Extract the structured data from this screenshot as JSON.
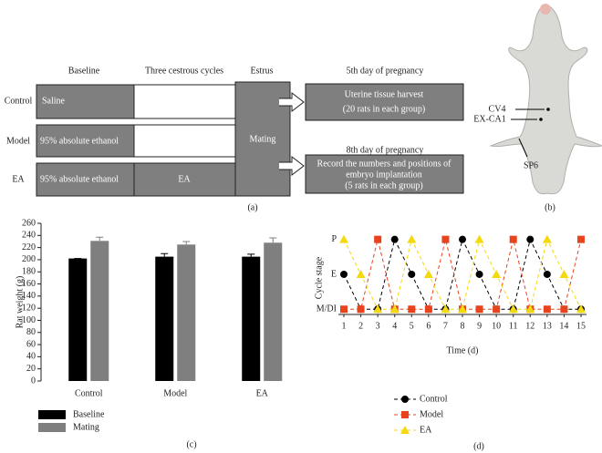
{
  "diagram": {
    "column_headers": [
      "Baseline",
      "Three cestrous cycles",
      "Estrus",
      "5th day of pregnancy",
      "8th day of pregnancy"
    ],
    "row_labels": [
      "Control",
      "Model",
      "EA"
    ],
    "boxes": [
      "Saline",
      "95% absolute ethanol",
      "95% absolute ethanol",
      "EA",
      "Mating"
    ],
    "outcomes": [
      [
        "Uterine tissue harvest",
        "(20 rats in each group)"
      ],
      [
        "Record the numbers and positions of",
        "embryo implantation",
        "(5 rats in each group)"
      ]
    ],
    "panel_label": "(a)"
  },
  "photo": {
    "labels": [
      "CV4",
      "EX-CA1",
      "SP6"
    ],
    "panel_label": "(b)"
  },
  "chart_data": [
    {
      "type": "bar",
      "panel_label": "(c)",
      "y_label": "Rat weight (g)",
      "categories": [
        "Control",
        "Model",
        "EA"
      ],
      "series": [
        {
          "name": "Baseline",
          "color": "#000000",
          "values": [
            202,
            205,
            205
          ],
          "errors": [
            0,
            5,
            4
          ]
        },
        {
          "name": "Mating",
          "color": "#7f7f7f",
          "values": [
            231,
            225,
            228
          ],
          "errors": [
            6,
            5,
            8
          ]
        }
      ],
      "ylim": [
        0,
        260
      ],
      "yticks": [
        0,
        20,
        40,
        60,
        80,
        100,
        120,
        140,
        160,
        180,
        200,
        220,
        240,
        260
      ]
    },
    {
      "type": "line",
      "panel_label": "(d)",
      "x_label": "Time (d)",
      "y_label": "Cycle stage",
      "x": [
        1,
        2,
        3,
        4,
        5,
        6,
        7,
        8,
        9,
        10,
        11,
        12,
        13,
        14,
        15
      ],
      "series": [
        {
          "name": "Control",
          "color": "#000000",
          "marker": "circle",
          "values": [
            2,
            1,
            1,
            3,
            2,
            1,
            1,
            3,
            2,
            1,
            1,
            3,
            2,
            1,
            1
          ]
        },
        {
          "name": "Model",
          "color": "#e8431c",
          "marker": "square",
          "values": [
            1,
            1,
            3,
            1,
            1,
            1,
            3,
            1,
            1,
            1,
            3,
            1,
            1,
            1,
            3
          ]
        },
        {
          "name": "EA",
          "color": "#f5d90f",
          "marker": "triangle",
          "values": [
            3,
            2,
            1,
            1,
            3,
            2,
            1,
            1,
            3,
            2,
            1,
            1,
            3,
            2,
            1
          ]
        }
      ],
      "xlim": [
        1,
        15
      ],
      "xticks": [
        1,
        2,
        3,
        4,
        5,
        6,
        7,
        8,
        9,
        10,
        11,
        12,
        13,
        14,
        15
      ],
      "ylim": [
        0.85,
        3.2
      ],
      "yticks": [
        {
          "value": 1,
          "label": "M/DI"
        },
        {
          "value": 2,
          "label": "E"
        },
        {
          "value": 3,
          "label": "P"
        }
      ]
    }
  ]
}
